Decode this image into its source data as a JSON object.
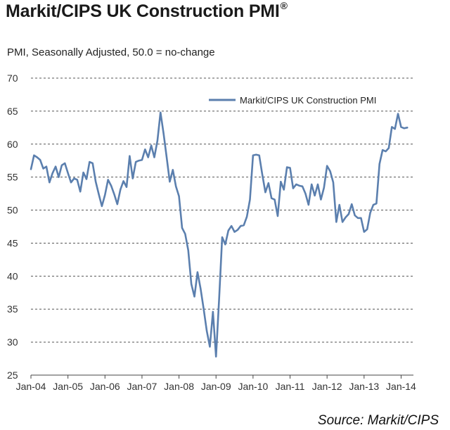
{
  "chart_data": {
    "type": "line",
    "title": "Markit/CIPS UK Construction PMI",
    "title_mark": "®",
    "subtitle": "PMI, Seasonally Adjusted, 50.0 = no-change",
    "source": "Source: Markit/CIPS",
    "ylim": [
      25,
      70
    ],
    "yticks": [
      "25",
      "30",
      "35",
      "40",
      "45",
      "50",
      "55",
      "60",
      "65",
      "70"
    ],
    "xlim": [
      "2004-01",
      "2014-05"
    ],
    "xticks": [
      "Jan-04",
      "Jan-05",
      "Jan-06",
      "Jan-07",
      "Jan-08",
      "Jan-09",
      "Jan-10",
      "Jan-11",
      "Jan-12",
      "Jan-13",
      "Jan-14"
    ],
    "grid": "horizontal dashed",
    "legend_position": "top-right",
    "color": "#5b7fae",
    "series": [
      {
        "name": "Markit/CIPS UK Construction PMI",
        "start": "2004-01",
        "frequency": "monthly",
        "values": [
          56.2,
          58.3,
          58.0,
          57.6,
          56.3,
          56.6,
          54.2,
          55.6,
          56.6,
          55.0,
          56.8,
          57.1,
          55.6,
          54.2,
          54.8,
          54.6,
          52.8,
          55.7,
          54.7,
          57.3,
          57.1,
          54.3,
          52.4,
          50.6,
          52.3,
          54.6,
          53.7,
          52.4,
          50.9,
          53.1,
          54.4,
          53.5,
          58.2,
          54.8,
          57.3,
          57.5,
          57.6,
          59.2,
          58.0,
          59.8,
          58.0,
          60.5,
          64.8,
          61.6,
          58.0,
          54.3,
          56.1,
          53.6,
          52.1,
          47.3,
          46.4,
          43.9,
          38.8,
          36.9,
          40.6,
          38.1,
          35.0,
          31.7,
          29.3,
          34.6,
          27.8,
          36.5,
          45.9,
          44.8,
          46.9,
          47.6,
          46.7,
          47.0,
          47.6,
          47.7,
          49.0,
          51.6,
          58.3,
          58.4,
          58.3,
          55.4,
          52.7,
          54.1,
          51.8,
          51.6,
          49.1,
          54.3,
          53.1,
          56.5,
          56.4,
          53.3,
          53.9,
          53.7,
          53.6,
          52.5,
          50.8,
          53.9,
          52.2,
          53.9,
          51.6,
          53.4,
          56.7,
          55.9,
          54.2,
          48.2,
          50.8,
          48.2,
          48.9,
          49.4,
          50.9,
          49.2,
          48.8,
          48.8,
          46.7,
          47.1,
          49.6,
          50.8,
          51.0,
          57.0,
          59.1,
          58.9,
          59.4,
          62.6,
          62.3,
          64.6,
          62.6,
          62.4,
          62.5
        ]
      }
    ]
  }
}
